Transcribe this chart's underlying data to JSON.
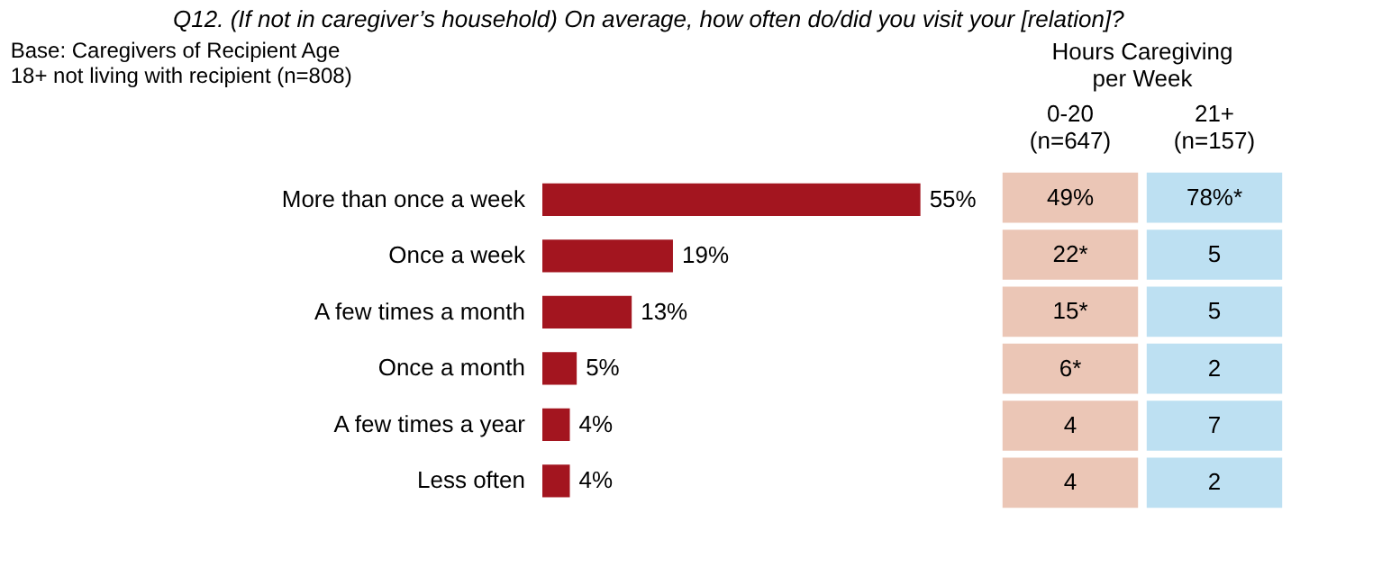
{
  "chart_data": [
    {
      "type": "bar",
      "orientation": "horizontal",
      "title": "Q12. (If not in caregiver’s household) On average, how often do/did you visit your [relation]?",
      "annotations": [
        "Base: Caregivers of Recipient Age\n18+ not living with recipient (n=808)"
      ],
      "categories": [
        "More than once a week",
        "Once a week",
        "A few times a month",
        "Once a month",
        "A few times a year",
        "Less often"
      ],
      "values": [
        55,
        19,
        13,
        5,
        4,
        4
      ],
      "color": "#a3151f",
      "data_labels": true,
      "value_labels": [
        "55%",
        "19%",
        "13%",
        "5%",
        "4%",
        "4%"
      ]
    },
    {
      "type": "other",
      "title": "Hours Caregiving\nper Week",
      "categories": [
        "0-20\n(n=647)",
        "21+\n(n=157)"
      ],
      "y_categories": [
        null,
        null,
        null,
        null,
        null,
        null
      ],
      "colors": [
        "#ebc6b6",
        "#bde0f2"
      ],
      "cell_labels": [
        [
          "49%",
          "78%*"
        ],
        [
          "22*",
          "5"
        ],
        [
          "15*",
          "5"
        ],
        [
          "6*",
          "2"
        ],
        [
          "4",
          "7"
        ],
        [
          "4",
          "2"
        ]
      ]
    }
  ]
}
